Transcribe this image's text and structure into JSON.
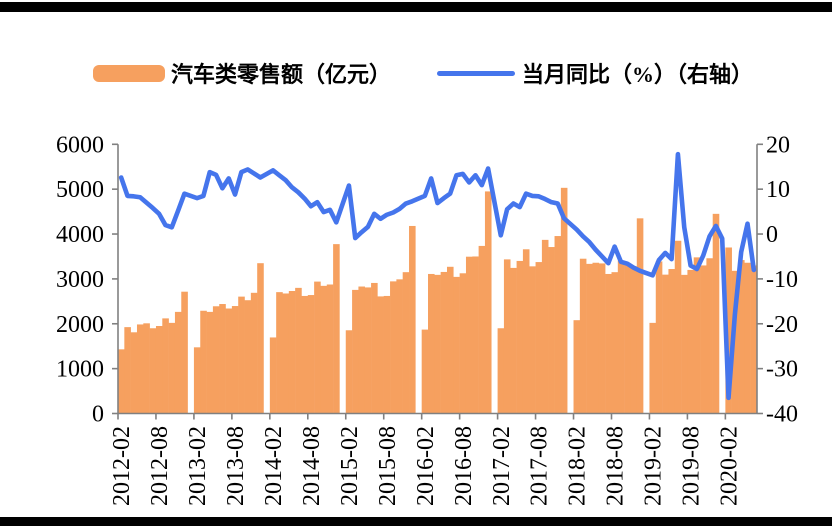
{
  "page": {
    "background": "#ffffff",
    "top_rule_color": "#000000",
    "bottom_rule_color": "#000000"
  },
  "legend": {
    "bar_label": "汽车类零售额（亿元）",
    "line_label": "当月同比（%）（右轴）"
  },
  "chart_data": {
    "type": "bar+line",
    "title": "",
    "bar_series_name": "汽车类零售额（亿元）",
    "line_series_name": "当月同比（%）（右轴）",
    "bar_color": "#F6A05F",
    "line_color": "#4575EC",
    "axis_color": "#808080",
    "label_color": "#000000",
    "grid": "off",
    "legend_position": "top",
    "left_axis": {
      "min": 0,
      "max": 6000,
      "ticks": [
        0,
        1000,
        2000,
        3000,
        4000,
        5000,
        6000
      ]
    },
    "right_axis": {
      "min": -40,
      "max": 20,
      "ticks": [
        -40,
        -30,
        -20,
        -10,
        0,
        10,
        20
      ]
    },
    "x_tick_labels": [
      "2012-02",
      "2012-08",
      "2013-02",
      "2013-08",
      "2014-02",
      "2014-08",
      "2015-02",
      "2015-08",
      "2016-02",
      "2016-08",
      "2017-02",
      "2017-08",
      "2018-02",
      "2018-08",
      "2019-02",
      "2019-08",
      "2020-02"
    ],
    "months": [
      "2012-02",
      "2012-03",
      "2012-04",
      "2012-05",
      "2012-06",
      "2012-07",
      "2012-08",
      "2012-09",
      "2012-10",
      "2012-11",
      "2012-12",
      "2013-01",
      "2013-02",
      "2013-03",
      "2013-04",
      "2013-05",
      "2013-06",
      "2013-07",
      "2013-08",
      "2013-09",
      "2013-10",
      "2013-11",
      "2013-12",
      "2014-01",
      "2014-02",
      "2014-03",
      "2014-04",
      "2014-05",
      "2014-06",
      "2014-07",
      "2014-08",
      "2014-09",
      "2014-10",
      "2014-11",
      "2014-12",
      "2015-01",
      "2015-02",
      "2015-03",
      "2015-04",
      "2015-05",
      "2015-06",
      "2015-07",
      "2015-08",
      "2015-09",
      "2015-10",
      "2015-11",
      "2015-12",
      "2016-01",
      "2016-02",
      "2016-03",
      "2016-04",
      "2016-05",
      "2016-06",
      "2016-07",
      "2016-08",
      "2016-09",
      "2016-10",
      "2016-11",
      "2016-12",
      "2017-01",
      "2017-02",
      "2017-03",
      "2017-04",
      "2017-05",
      "2017-06",
      "2017-07",
      "2017-08",
      "2017-09",
      "2017-10",
      "2017-11",
      "2017-12",
      "2018-01",
      "2018-02",
      "2018-03",
      "2018-04",
      "2018-05",
      "2018-06",
      "2018-07",
      "2018-08",
      "2018-09",
      "2018-10",
      "2018-11",
      "2018-12",
      "2019-01",
      "2019-02",
      "2019-03",
      "2019-04",
      "2019-05",
      "2019-06",
      "2019-07",
      "2019-08",
      "2019-09",
      "2019-10",
      "2019-11",
      "2019-12",
      "2020-01",
      "2020-02",
      "2020-03",
      "2020-04",
      "2020-05",
      "2020-06"
    ],
    "bars": [
      1430,
      1925,
      1810,
      1985,
      2010,
      1900,
      1950,
      2120,
      2020,
      2265,
      2715,
      null,
      1475,
      2290,
      2265,
      2390,
      2440,
      2340,
      2395,
      2605,
      2525,
      2690,
      3350,
      null,
      1695,
      2705,
      2675,
      2730,
      2800,
      2620,
      2640,
      2940,
      2845,
      2875,
      3775,
      null,
      1855,
      2755,
      2830,
      2810,
      2910,
      2610,
      2620,
      2945,
      2990,
      3150,
      4180,
      null,
      1870,
      3110,
      3090,
      3155,
      3270,
      3045,
      3125,
      3495,
      3500,
      3735,
      4950,
      null,
      1900,
      3435,
      3245,
      3400,
      3660,
      3280,
      3375,
      3870,
      3710,
      3955,
      5030,
      null,
      2080,
      3450,
      3335,
      3360,
      3345,
      3110,
      3150,
      3410,
      3320,
      3280,
      4350,
      null,
      2020,
      3390,
      3095,
      3220,
      3850,
      3090,
      3200,
      3480,
      3300,
      3460,
      4450,
      null,
      3700,
      3180,
      3420,
      3360,
      3300
    ],
    "line": [
      12.6,
      8.5,
      8.4,
      8.2,
      7.0,
      5.8,
      4.5,
      2.0,
      1.5,
      5.2,
      9.0,
      null,
      8.0,
      8.5,
      13.8,
      13.2,
      10.2,
      12.4,
      8.8,
      13.8,
      14.4,
      13.5,
      12.6,
      null,
      14.2,
      13.1,
      12.0,
      10.4,
      9.3,
      7.9,
      6.2,
      7.1,
      4.9,
      5.4,
      2.6,
      null,
      10.8,
      -0.9,
      0.4,
      1.6,
      4.5,
      3.4,
      4.3,
      4.8,
      5.6,
      6.8,
      7.3,
      null,
      8.5,
      12.4,
      6.9,
      8.0,
      9.0,
      13.1,
      13.4,
      11.5,
      13.1,
      10.9,
      14.6,
      null,
      -0.3,
      5.5,
      6.8,
      6.0,
      9.0,
      8.5,
      8.4,
      7.8,
      7.1,
      6.8,
      3.5,
      null,
      1.0,
      -0.5,
      -1.8,
      -3.5,
      -5.0,
      -6.5,
      -2.8,
      -6.2,
      -6.6,
      -7.5,
      -8.2,
      null,
      -9.2,
      -5.8,
      -4.2,
      -5.6,
      17.8,
      1.5,
      -7.0,
      -7.8,
      -4.8,
      -0.5,
      1.8,
      -1.0,
      -36.5,
      -18.0,
      -4.0,
      2.3,
      -8.0
    ]
  }
}
